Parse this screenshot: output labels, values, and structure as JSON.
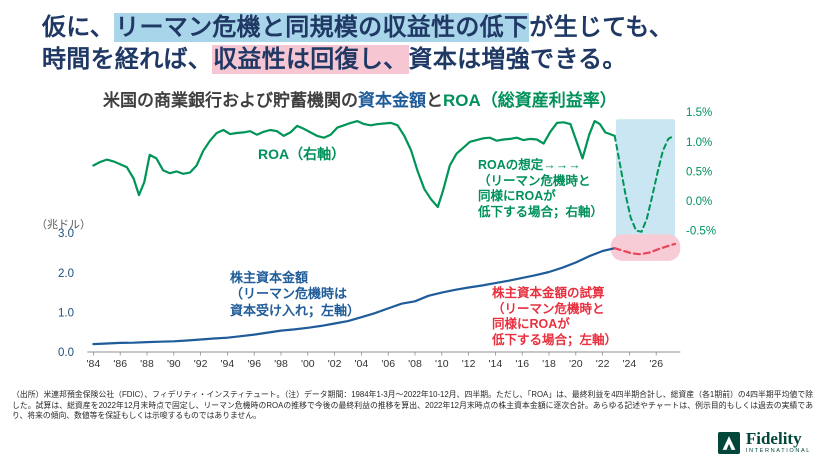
{
  "title": {
    "line1_pre": "仮に、",
    "line1_highlight": "リーマン危機と同規模の収益性の低下",
    "line1_post": "が生じても、",
    "line2_pre": "時間を経れば、",
    "line2_highlight": "収益性は回復し、",
    "line2_post": "資本は増強できる。"
  },
  "subtitle": {
    "part1": "米国の商業銀行および貯蓄機関の",
    "part2": "資本金額",
    "part3": "と",
    "part4": "ROA（総資産利益率）"
  },
  "chart": {
    "unit_label": "（兆ドル）",
    "roa_label": "ROA（右軸）",
    "roa_note": "ROAの想定→→→\n（リーマン危機時と\n同様にROAが\n低下する場合；右軸）",
    "equity_note": "株主資本金額\n（リーマン危機時は\n資本受け入れ；左軸）",
    "equity_sim_note": "株主資本金額の試算\n（リーマン危機時と\n同様にROAが\n低下する場合；左軸）"
  },
  "chart_data": {
    "type": "line",
    "title": "米国の商業銀行および貯蓄機関の資本金額とROA（総資産利益率）",
    "x_range": [
      1984,
      2027
    ],
    "x_ticks": [
      "'84",
      "'86",
      "'88",
      "'90",
      "'92",
      "'94",
      "'96",
      "'98",
      "'00",
      "'02",
      "'04",
      "'06",
      "'08",
      "'10",
      "'12",
      "'14",
      "'16",
      "'18",
      "'20",
      "'22",
      "'24",
      "'26"
    ],
    "left_axis": {
      "label": "（兆ドル）",
      "color": "#1f4e79",
      "ticks": [
        {
          "v": 0,
          "label": "0.0"
        },
        {
          "v": 1,
          "label": "1.0"
        },
        {
          "v": 2,
          "label": "2.0"
        },
        {
          "v": 3,
          "label": "3.0"
        }
      ]
    },
    "right_axis": {
      "color": "#00915a",
      "ticks": [
        {
          "v": 1.5,
          "label": "1.5%"
        },
        {
          "v": 1.0,
          "label": "1.0%"
        },
        {
          "v": 0.5,
          "label": "0.5%"
        },
        {
          "v": 0.0,
          "label": "0.0%"
        },
        {
          "v": -0.5,
          "label": "-0.5%"
        }
      ]
    },
    "bands": [
      {
        "name": "roa-scenario-highlight-band",
        "x0": 2023.0,
        "x1": 2027.4,
        "axis": "right",
        "y0": 1.38,
        "y1": -0.66,
        "color": "#c9e6f2",
        "rx": 2
      },
      {
        "name": "equity-scenario-highlight-band",
        "x0": 2022.6,
        "x1": 2027.8,
        "axis": "left",
        "y0": 2.97,
        "y1": 2.3,
        "color": "#f8ccd6",
        "rx": 12
      }
    ],
    "series": [
      {
        "name": "ROA（右軸）",
        "name_id": "roa-line",
        "axis": "right",
        "color": "#009457",
        "width": 2.2,
        "points": [
          [
            1984,
            0.6
          ],
          [
            1984.5,
            0.66
          ],
          [
            1985,
            0.7
          ],
          [
            1985.5,
            0.67
          ],
          [
            1986,
            0.62
          ],
          [
            1986.5,
            0.57
          ],
          [
            1987,
            0.38
          ],
          [
            1987.4,
            0.1
          ],
          [
            1987.8,
            0.32
          ],
          [
            1988.2,
            0.78
          ],
          [
            1988.7,
            0.72
          ],
          [
            1989.2,
            0.52
          ],
          [
            1989.7,
            0.47
          ],
          [
            1990.2,
            0.5
          ],
          [
            1990.7,
            0.46
          ],
          [
            1991.2,
            0.48
          ],
          [
            1991.7,
            0.6
          ],
          [
            1992.2,
            0.85
          ],
          [
            1992.7,
            1.02
          ],
          [
            1993.2,
            1.15
          ],
          [
            1993.7,
            1.2
          ],
          [
            1994.2,
            1.13
          ],
          [
            1994.7,
            1.15
          ],
          [
            1995.2,
            1.16
          ],
          [
            1995.7,
            1.18
          ],
          [
            1996.2,
            1.12
          ],
          [
            1996.7,
            1.17
          ],
          [
            1997.2,
            1.2
          ],
          [
            1997.7,
            1.18
          ],
          [
            1998.2,
            1.1
          ],
          [
            1998.7,
            1.16
          ],
          [
            1999.2,
            1.27
          ],
          [
            1999.7,
            1.22
          ],
          [
            2000.2,
            1.16
          ],
          [
            2000.7,
            1.1
          ],
          [
            2001.2,
            1.07
          ],
          [
            2001.7,
            1.12
          ],
          [
            2002.2,
            1.24
          ],
          [
            2002.7,
            1.28
          ],
          [
            2003.2,
            1.32
          ],
          [
            2003.7,
            1.35
          ],
          [
            2004.2,
            1.3
          ],
          [
            2004.7,
            1.28
          ],
          [
            2005.2,
            1.3
          ],
          [
            2005.7,
            1.31
          ],
          [
            2006.2,
            1.32
          ],
          [
            2006.7,
            1.28
          ],
          [
            2007.2,
            1.1
          ],
          [
            2007.7,
            0.86
          ],
          [
            2008.2,
            0.5
          ],
          [
            2008.7,
            0.2
          ],
          [
            2009.2,
            0.03
          ],
          [
            2009.7,
            -0.1
          ],
          [
            2010.1,
            0.18
          ],
          [
            2010.6,
            0.6
          ],
          [
            2011.1,
            0.8
          ],
          [
            2011.6,
            0.9
          ],
          [
            2012.1,
            1.0
          ],
          [
            2012.6,
            1.03
          ],
          [
            2013.1,
            1.06
          ],
          [
            2013.6,
            1.07
          ],
          [
            2014.1,
            1.02
          ],
          [
            2014.6,
            1.04
          ],
          [
            2015.1,
            1.05
          ],
          [
            2015.6,
            1.07
          ],
          [
            2016.1,
            1.03
          ],
          [
            2016.6,
            1.05
          ],
          [
            2017.1,
            1.04
          ],
          [
            2017.6,
            0.97
          ],
          [
            2018.1,
            1.17
          ],
          [
            2018.6,
            1.32
          ],
          [
            2019.1,
            1.33
          ],
          [
            2019.6,
            1.3
          ],
          [
            2020.1,
            0.98
          ],
          [
            2020.5,
            0.72
          ],
          [
            2021,
            1.12
          ],
          [
            2021.4,
            1.35
          ],
          [
            2021.8,
            1.3
          ],
          [
            2022.2,
            1.16
          ],
          [
            2022.9,
            1.1
          ]
        ]
      },
      {
        "name": "ROAの想定（リーマン危機時と同様にROAが低下する場合；右軸）",
        "name_id": "roa-projection-line",
        "axis": "right",
        "color": "#009457",
        "width": 2,
        "dash": "5 4",
        "points": [
          [
            2022.9,
            1.1
          ],
          [
            2023.3,
            0.62
          ],
          [
            2023.7,
            0.12
          ],
          [
            2024.1,
            -0.28
          ],
          [
            2024.5,
            -0.5
          ],
          [
            2024.9,
            -0.52
          ],
          [
            2025.3,
            -0.3
          ],
          [
            2025.7,
            0.08
          ],
          [
            2026.1,
            0.48
          ],
          [
            2026.5,
            0.85
          ],
          [
            2026.9,
            1.05
          ],
          [
            2027.3,
            1.1
          ]
        ]
      },
      {
        "name": "株主資本金額（リーマン危機時は資本受け入れ；左軸）",
        "name_id": "equity-line",
        "axis": "left",
        "color": "#1f5c99",
        "width": 2.2,
        "points": [
          [
            1984,
            0.2
          ],
          [
            1985,
            0.215
          ],
          [
            1986,
            0.23
          ],
          [
            1987,
            0.235
          ],
          [
            1988,
            0.25
          ],
          [
            1989,
            0.26
          ],
          [
            1990,
            0.27
          ],
          [
            1991,
            0.29
          ],
          [
            1992,
            0.315
          ],
          [
            1993,
            0.34
          ],
          [
            1994,
            0.36
          ],
          [
            1995,
            0.4
          ],
          [
            1996,
            0.44
          ],
          [
            1997,
            0.49
          ],
          [
            1998,
            0.54
          ],
          [
            1999,
            0.57
          ],
          [
            2000,
            0.61
          ],
          [
            2001,
            0.66
          ],
          [
            2002,
            0.72
          ],
          [
            2003,
            0.78
          ],
          [
            2004,
            0.88
          ],
          [
            2005,
            0.98
          ],
          [
            2006,
            1.1
          ],
          [
            2007,
            1.22
          ],
          [
            2008,
            1.28
          ],
          [
            2009,
            1.42
          ],
          [
            2010,
            1.5
          ],
          [
            2011,
            1.57
          ],
          [
            2012,
            1.63
          ],
          [
            2013,
            1.68
          ],
          [
            2014,
            1.74
          ],
          [
            2015,
            1.8
          ],
          [
            2016,
            1.87
          ],
          [
            2017,
            1.94
          ],
          [
            2018,
            2.02
          ],
          [
            2019,
            2.13
          ],
          [
            2020,
            2.26
          ],
          [
            2021,
            2.42
          ],
          [
            2022,
            2.55
          ],
          [
            2022.9,
            2.62
          ]
        ]
      },
      {
        "name": "株主資本金額の試算（リーマン危機時と同様にROAが低下する場合；左軸）",
        "name_id": "equity-projection-line",
        "axis": "left",
        "color": "#e84558",
        "width": 2.2,
        "dash": "6 4",
        "points": [
          [
            2022.9,
            2.62
          ],
          [
            2023.5,
            2.56
          ],
          [
            2024.2,
            2.49
          ],
          [
            2024.8,
            2.47
          ],
          [
            2025.5,
            2.51
          ],
          [
            2026.2,
            2.6
          ],
          [
            2026.9,
            2.68
          ],
          [
            2027.4,
            2.73
          ]
        ]
      }
    ]
  },
  "footnote": "（出所）米連邦預金保険公社（FDIC）、フィデリティ・インスティテュート。（注）データ期間：1984年1-3月～2022年10-12月、四半期。ただし、「ROA」は、最終利益を4四半期合計し、総資産（各1期前）の4四半期平均値で除した。試算は、総資産を2022年12月末時点で固定し、リーマン危機時のROAの推移で今後の最終利益の推移を算出、2022年12月末時点の株主資本金額に逐次合計。あらゆる記述やチャートは、例示目的もしくは過去の実績であり、将来の傾向、数値等を保証もしくは示唆するものではありません。",
  "logo": {
    "brand": "Fidelity",
    "sub": "INTERNATIONAL"
  }
}
